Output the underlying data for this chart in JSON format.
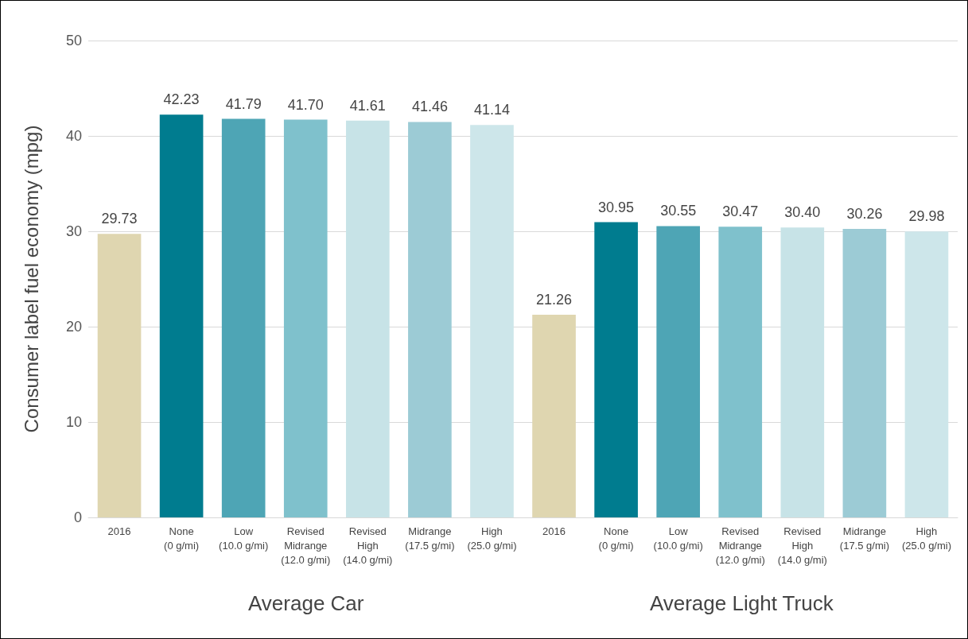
{
  "chart_data": {
    "type": "bar",
    "ylabel": "Consumer label fuel economy (mpg)",
    "categories": [
      "2016",
      "None\n(0 g/mi)",
      "Low\n(10.0 g/mi)",
      "Revised\nMidrange\n(12.0 g/mi)",
      "Revised\nHigh\n(14.0 g/mi)",
      "Midrange\n(17.5 g/mi)",
      "High\n(25.0 g/mi)",
      "2016",
      "None\n(0 g/mi)",
      "Low\n(10.0 g/mi)",
      "Revised\nMidrange\n(12.0 g/mi)",
      "Revised\nHigh\n(14.0 g/mi)",
      "Midrange\n(17.5 g/mi)",
      "High\n(25.0 g/mi)"
    ],
    "values": [
      29.73,
      42.23,
      41.79,
      41.7,
      41.61,
      41.46,
      41.14,
      21.26,
      30.95,
      30.55,
      30.47,
      30.4,
      30.26,
      29.98
    ],
    "colors": [
      "#dfd6b0",
      "#007c8f",
      "#4ea5b5",
      "#7fc1cc",
      "#c7e3e7",
      "#9ccbd5",
      "#cde6ea",
      "#dfd6b0",
      "#007c8f",
      "#4ea5b5",
      "#7fc1cc",
      "#c7e3e7",
      "#9ccbd5",
      "#cde6ea"
    ],
    "ylim": [
      0,
      50
    ],
    "yticks": [
      0,
      10,
      20,
      30,
      40,
      50
    ],
    "grid": "y",
    "value_labels": [
      "29.73",
      "42.23",
      "41.79",
      "41.70",
      "41.61",
      "41.46",
      "41.14",
      "21.26",
      "30.95",
      "30.55",
      "30.47",
      "30.40",
      "30.26",
      "29.98"
    ],
    "annotations": [
      "Average Car",
      "Average Light Truck"
    ]
  }
}
